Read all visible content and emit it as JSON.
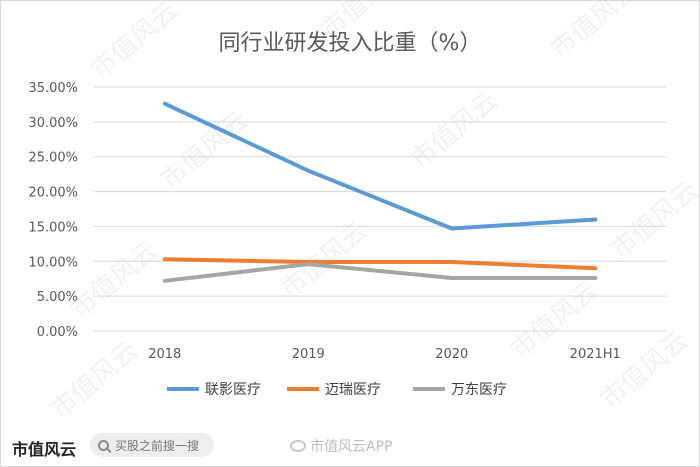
{
  "chart_data": {
    "type": "line",
    "title": "同行业研发投入比重（%）",
    "categories": [
      "2018",
      "2019",
      "2020",
      "2021H1"
    ],
    "y_ticks": [
      "0.00%",
      "5.00%",
      "10.00%",
      "15.00%",
      "20.00%",
      "25.00%",
      "30.00%",
      "35.00%"
    ],
    "ylim": [
      0,
      35
    ],
    "grid": true,
    "legend_position": "bottom",
    "series": [
      {
        "name": "联影医疗",
        "color": "#5b9bd5",
        "values": [
          32.6,
          23.0,
          14.7,
          16.0
        ]
      },
      {
        "name": "迈瑞医疗",
        "color": "#ed7d31",
        "values": [
          10.3,
          9.9,
          9.9,
          9.0
        ]
      },
      {
        "name": "万东医疗",
        "color": "#a5a5a5",
        "values": [
          7.2,
          9.6,
          7.6,
          7.6
        ]
      }
    ]
  },
  "watermark": "市值风云",
  "footer": {
    "brand": "市值风云",
    "search_placeholder": "买股之前搜一搜",
    "app_tag": "市值风云APP"
  }
}
